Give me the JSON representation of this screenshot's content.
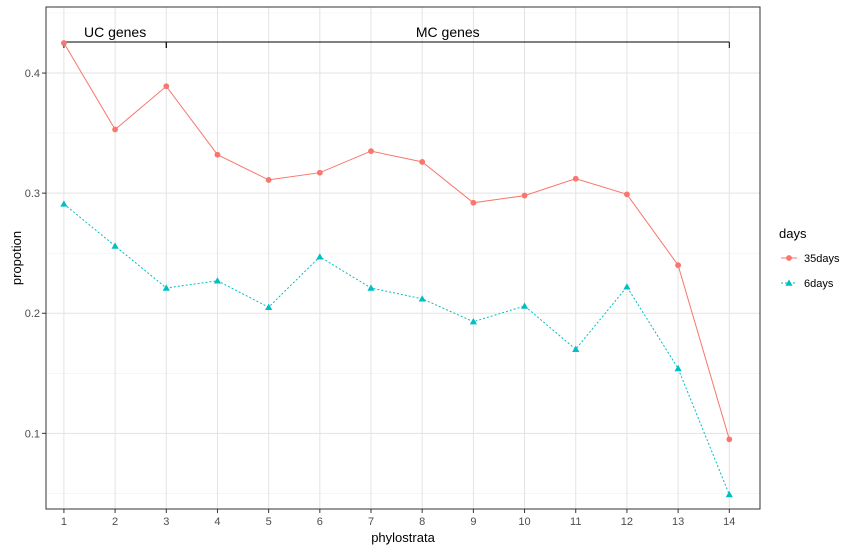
{
  "chart_data": {
    "type": "line",
    "title": "",
    "xlabel": "phylostrata",
    "ylabel": "propotion",
    "x": [
      1,
      2,
      3,
      4,
      5,
      6,
      7,
      8,
      9,
      10,
      11,
      12,
      13,
      14
    ],
    "xticks": [
      "1",
      "2",
      "3",
      "4",
      "5",
      "6",
      "7",
      "8",
      "9",
      "10",
      "11",
      "12",
      "13",
      "14"
    ],
    "xlim": [
      0.65,
      14.6
    ],
    "ylim": [
      0.037,
      0.455
    ],
    "yticks": [
      0.1,
      0.2,
      0.3,
      0.4
    ],
    "ytick_labels": [
      "0.1",
      "0.2",
      "0.3",
      "0.4"
    ],
    "grid": true,
    "legend": {
      "title": "days",
      "position": "right"
    },
    "series": [
      {
        "name": "35days",
        "color": "#F8766D",
        "marker": "circle",
        "linestyle": "solid",
        "values": [
          0.425,
          0.353,
          0.389,
          0.332,
          0.311,
          0.317,
          0.335,
          0.326,
          0.292,
          0.298,
          0.312,
          0.299,
          0.24,
          0.095
        ]
      },
      {
        "name": "6days",
        "color": "#00BFC4",
        "marker": "triangle",
        "linestyle": "dotted",
        "values": [
          0.291,
          0.256,
          0.221,
          0.227,
          0.205,
          0.247,
          0.221,
          0.212,
          0.193,
          0.206,
          0.17,
          0.222,
          0.154,
          0.049
        ]
      }
    ],
    "annotations": [
      {
        "text": "UC genes",
        "from_x": 1,
        "to_x": 3
      },
      {
        "text": "MC genes",
        "from_x": 3,
        "to_x": 14
      }
    ]
  }
}
